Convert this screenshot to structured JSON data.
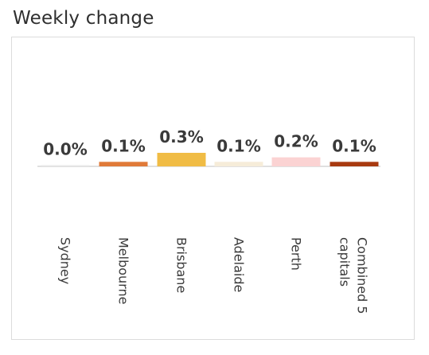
{
  "title": "Weekly change",
  "chart_data": {
    "type": "bar",
    "categories": [
      "Sydney",
      "Melbourne",
      "Brisbane",
      "Adelaide",
      "Perth",
      [
        "Combined 5",
        "capitals"
      ]
    ],
    "values": [
      0.0,
      0.1,
      0.3,
      0.1,
      0.2,
      0.1
    ],
    "value_labels": [
      "0.0%",
      "0.1%",
      "0.3%",
      "0.1%",
      "0.2%",
      "0.1%"
    ],
    "colors": [
      "#e8e8e8",
      "#e07a38",
      "#f0bc45",
      "#f6ecd9",
      "#fbd3d3",
      "#a83a10"
    ],
    "ylim": [
      0,
      0.3
    ],
    "grid": false,
    "legend": "none"
  }
}
